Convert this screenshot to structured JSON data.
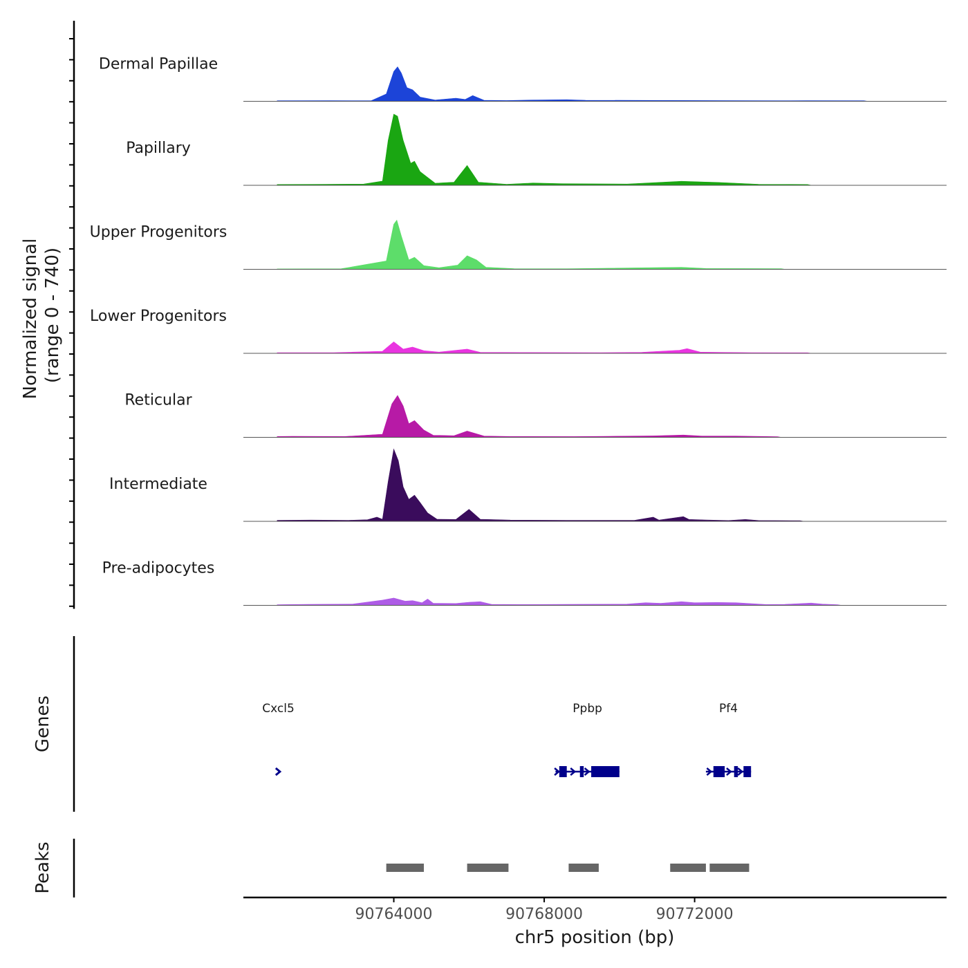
{
  "chart_data": {
    "type": "area",
    "title": "",
    "xlabel": "chr5 position (bp)",
    "ylabel_line1": "Normalized signal",
    "ylabel_line2": "(range 0 - 740)",
    "ylim": [
      0,
      740
    ],
    "xlim": [
      90760000,
      90778700
    ],
    "x_ticks": [
      {
        "value": 90764000,
        "label": "90764000"
      },
      {
        "value": 90768000,
        "label": "90768000"
      },
      {
        "value": 90772000,
        "label": "90772000"
      }
    ],
    "tracks": [
      {
        "name": "Dermal Papillae",
        "color": "#1c44d8",
        "series": [
          [
            90760900,
            5
          ],
          [
            90762300,
            6
          ],
          [
            90763400,
            5
          ],
          [
            90763800,
            70
          ],
          [
            90764000,
            285
          ],
          [
            90764100,
            330
          ],
          [
            90764200,
            270
          ],
          [
            90764350,
            130
          ],
          [
            90764500,
            110
          ],
          [
            90764700,
            40
          ],
          [
            90765100,
            12
          ],
          [
            90765650,
            30
          ],
          [
            90765900,
            18
          ],
          [
            90766100,
            55
          ],
          [
            90766400,
            10
          ],
          [
            90767000,
            7
          ],
          [
            90767700,
            12
          ],
          [
            90768600,
            15
          ],
          [
            90769100,
            10
          ],
          [
            90771200,
            8
          ],
          [
            90773300,
            6
          ],
          [
            90774200,
            5
          ],
          [
            90775000,
            6
          ],
          [
            90776500,
            5
          ]
        ]
      },
      {
        "name": "Papillary",
        "color": "#1aa612",
        "series": [
          [
            90760900,
            8
          ],
          [
            90762200,
            10
          ],
          [
            90763200,
            12
          ],
          [
            90763700,
            40
          ],
          [
            90763850,
            430
          ],
          [
            90764000,
            680
          ],
          [
            90764100,
            660
          ],
          [
            90764250,
            430
          ],
          [
            90764450,
            210
          ],
          [
            90764550,
            230
          ],
          [
            90764700,
            130
          ],
          [
            90765100,
            20
          ],
          [
            90765600,
            30
          ],
          [
            90765950,
            190
          ],
          [
            90766250,
            30
          ],
          [
            90767000,
            10
          ],
          [
            90767700,
            22
          ],
          [
            90768500,
            15
          ],
          [
            90770200,
            12
          ],
          [
            90771650,
            38
          ],
          [
            90772600,
            28
          ],
          [
            90773700,
            10
          ],
          [
            90775000,
            8
          ]
        ]
      },
      {
        "name": "Upper Progenitors",
        "color": "#5ddd6a",
        "series": [
          [
            90760900,
            4
          ],
          [
            90762600,
            5
          ],
          [
            90763800,
            80
          ],
          [
            90764000,
            430
          ],
          [
            90764080,
            470
          ],
          [
            90764200,
            320
          ],
          [
            90764400,
            90
          ],
          [
            90764550,
            115
          ],
          [
            90764800,
            35
          ],
          [
            90765200,
            15
          ],
          [
            90765700,
            40
          ],
          [
            90765950,
            130
          ],
          [
            90766200,
            90
          ],
          [
            90766450,
            20
          ],
          [
            90767200,
            6
          ],
          [
            90768600,
            5
          ],
          [
            90771650,
            20
          ],
          [
            90772300,
            8
          ],
          [
            90774300,
            6
          ]
        ]
      },
      {
        "name": "Lower Progenitors",
        "color": "#e934e0",
        "series": [
          [
            90760900,
            6
          ],
          [
            90762400,
            6
          ],
          [
            90763700,
            20
          ],
          [
            90764000,
            110
          ],
          [
            90764250,
            40
          ],
          [
            90764500,
            60
          ],
          [
            90764800,
            25
          ],
          [
            90765200,
            12
          ],
          [
            90765950,
            40
          ],
          [
            90766300,
            10
          ],
          [
            90767400,
            8
          ],
          [
            90769500,
            6
          ],
          [
            90770600,
            10
          ],
          [
            90771600,
            30
          ],
          [
            90771800,
            45
          ],
          [
            90772150,
            12
          ],
          [
            90773500,
            6
          ],
          [
            90775000,
            5
          ]
        ]
      },
      {
        "name": "Reticular",
        "color": "#b71aa6",
        "series": [
          [
            90760900,
            8
          ],
          [
            90761300,
            10
          ],
          [
            90762700,
            8
          ],
          [
            90763700,
            30
          ],
          [
            90763950,
            320
          ],
          [
            90764100,
            400
          ],
          [
            90764250,
            300
          ],
          [
            90764400,
            130
          ],
          [
            90764550,
            160
          ],
          [
            90764800,
            70
          ],
          [
            90765050,
            20
          ],
          [
            90765600,
            15
          ],
          [
            90765950,
            60
          ],
          [
            90766400,
            12
          ],
          [
            90767100,
            8
          ],
          [
            90768800,
            7
          ],
          [
            90769700,
            10
          ],
          [
            90770900,
            14
          ],
          [
            90771300,
            18
          ],
          [
            90771700,
            22
          ],
          [
            90772200,
            12
          ],
          [
            90773100,
            12
          ],
          [
            90774200,
            6
          ]
        ]
      },
      {
        "name": "Intermediate",
        "color": "#3a0c5c",
        "series": [
          [
            90760900,
            10
          ],
          [
            90761800,
            12
          ],
          [
            90762800,
            10
          ],
          [
            90763300,
            15
          ],
          [
            90763550,
            40
          ],
          [
            90763700,
            20
          ],
          [
            90763850,
            380
          ],
          [
            90764000,
            690
          ],
          [
            90764120,
            580
          ],
          [
            90764250,
            330
          ],
          [
            90764400,
            210
          ],
          [
            90764550,
            250
          ],
          [
            90764700,
            180
          ],
          [
            90764900,
            80
          ],
          [
            90765150,
            20
          ],
          [
            90765650,
            18
          ],
          [
            90766000,
            115
          ],
          [
            90766300,
            20
          ],
          [
            90767100,
            12
          ],
          [
            90768600,
            10
          ],
          [
            90770400,
            10
          ],
          [
            90770900,
            40
          ],
          [
            90771050,
            12
          ],
          [
            90771700,
            45
          ],
          [
            90771850,
            18
          ],
          [
            90772400,
            12
          ],
          [
            90772900,
            8
          ],
          [
            90773350,
            18
          ],
          [
            90773700,
            8
          ],
          [
            90774800,
            6
          ]
        ]
      },
      {
        "name": "Pre-adipocytes",
        "color": "#ae5ce6",
        "series": [
          [
            90760900,
            6
          ],
          [
            90761700,
            10
          ],
          [
            90762900,
            12
          ],
          [
            90763700,
            50
          ],
          [
            90764000,
            70
          ],
          [
            90764300,
            40
          ],
          [
            90764500,
            45
          ],
          [
            90764750,
            25
          ],
          [
            90764900,
            60
          ],
          [
            90765050,
            20
          ],
          [
            90765650,
            18
          ],
          [
            90766000,
            30
          ],
          [
            90766300,
            35
          ],
          [
            90766600,
            10
          ],
          [
            90767300,
            8
          ],
          [
            90768600,
            10
          ],
          [
            90770200,
            12
          ],
          [
            90770700,
            25
          ],
          [
            90771100,
            20
          ],
          [
            90771650,
            35
          ],
          [
            90772000,
            25
          ],
          [
            90772600,
            28
          ],
          [
            90773100,
            25
          ],
          [
            90773900,
            8
          ],
          [
            90774400,
            10
          ],
          [
            90775100,
            22
          ],
          [
            90775400,
            12
          ],
          [
            90775800,
            6
          ]
        ]
      }
    ],
    "genes_track_label": "Genes",
    "genes": [
      {
        "name": "Cxcl5",
        "strand": "+",
        "color": "#00008b",
        "start": 90760880,
        "end": 90760980,
        "exons": []
      },
      {
        "name": "Ppbp",
        "strand": "+",
        "color": "#00008b",
        "start": 90768300,
        "end": 90770000,
        "exons": [
          [
            90768400,
            90768600
          ],
          [
            90768950,
            90769050
          ],
          [
            90769250,
            90770000
          ]
        ]
      },
      {
        "name": "Pf4",
        "strand": "+",
        "color": "#00008b",
        "start": 90772300,
        "end": 90773500,
        "exons": [
          [
            90772500,
            90772800
          ],
          [
            90773050,
            90773150
          ],
          [
            90773300,
            90773500
          ]
        ]
      }
    ],
    "peaks_track_label": "Peaks",
    "peaks_color": "#666666",
    "peaks": [
      [
        90763800,
        90764800
      ],
      [
        90765950,
        90767050
      ],
      [
        90768650,
        90769450
      ],
      [
        90771350,
        90772300
      ],
      [
        90772400,
        90773450
      ]
    ]
  }
}
